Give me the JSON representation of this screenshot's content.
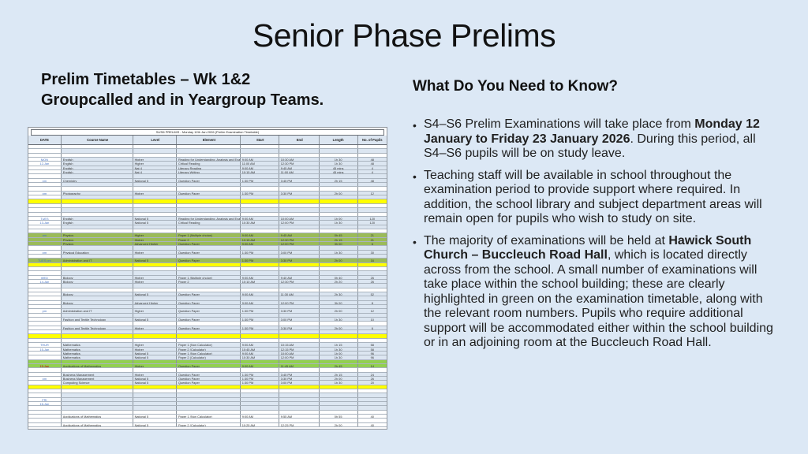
{
  "slide": {
    "title": "Senior Phase Prelims",
    "background_color": "#dce8f5"
  },
  "left": {
    "heading_line1": "Prelim Timetables – Wk 1&2",
    "heading_line2": "Groupcalled and in Yeargroup Teams."
  },
  "right": {
    "heading": "What Do You Need to Know?",
    "bullets": [
      [
        {
          "t": "S4–S6 Prelim Examinations will take place from "
        },
        {
          "t": "Monday 12 January to Friday 23 January 2026",
          "b": true
        },
        {
          "t": ". During this period, all S4–S6 pupils will be on study leave."
        }
      ],
      [
        {
          "t": " Teaching staff will be available in school throughout the examination period to provide support where required. In addition, the school library and subject department areas will remain open for pupils who wish to study on site."
        }
      ],
      [
        {
          "t": "The majority of examinations will be held at "
        },
        {
          "t": "Hawick South Church – Buccleuch Road Hall",
          "b": true
        },
        {
          "t": ", which is located directly across from the school. A small number of examinations will take place within the school building; these are clearly highlighted in green on the examination timetable, along with the relevant room numbers. Pupils who require additional support will be accommodated either within the school building or in an adjoining room at the Buccleuch Road Hall."
        }
      ]
    ]
  },
  "timetable": {
    "title": "S4/S6 PRELIMS - Monday 12th Jan 2026 (Prelim Examination Timetable)",
    "columns": [
      "DATE",
      "Course Name",
      "Level",
      "Element",
      "Start",
      "End",
      "Length",
      "No. of Pupils"
    ],
    "colors": {
      "row_blue": "#dce6f1",
      "highlight_yellow": "#ffff00",
      "highlight_olive": "#9bbb59",
      "highlight_green": "#92d050",
      "date_text_blue": "#4472c4",
      "date_text_red": "#c00000"
    },
    "rows": [
      {
        "f": "w"
      },
      {
        "f": "b"
      },
      {
        "f": "w"
      },
      {
        "f": "b",
        "c": [
          "MON",
          "English",
          "Higher",
          "Reading for Understanding, Analysis and Evaluation",
          "9:00 AM",
          "10:30 AM",
          "1h 30",
          "48"
        ]
      },
      {
        "f": "b",
        "c": [
          "12-Jan",
          "English",
          "Higher",
          "Critical Reading",
          "11:00 AM",
          "12:30 PM",
          "1h 30",
          "48"
        ]
      },
      {
        "f": "b",
        "c": [
          "",
          "English",
          "Nat 4",
          "Literacy Reading",
          "9:00 AM",
          "9:45 AM",
          "45 mins",
          "4"
        ]
      },
      {
        "f": "b",
        "c": [
          "",
          "English",
          "Nat 4",
          "Literacy Writing",
          "10:15 AM",
          "11:00 AM",
          "45 mins",
          "4"
        ]
      },
      {
        "f": "b"
      },
      {
        "f": "b",
        "c": [
          "pm",
          "Chemistry",
          "National 5",
          "Question Paper",
          "1:30 PM",
          "3:45 PM",
          "2h 15",
          "48"
        ]
      },
      {
        "f": "b"
      },
      {
        "f": "w"
      },
      {
        "f": "b",
        "c": [
          "pm",
          "Photography",
          "Higher",
          "Question Paper",
          "1:30 PM",
          "3:30 PM",
          "2h 00",
          "12"
        ]
      },
      {
        "f": "b"
      },
      {
        "f": "y"
      },
      {
        "f": "w"
      },
      {
        "f": "b"
      },
      {
        "f": "w"
      },
      {
        "f": "b",
        "c": [
          "TUES",
          "English",
          "National 5",
          "Reading for Understanding, Analysis and Evaluation",
          "9:00 AM",
          "10:00 AM",
          "1h 00",
          "120"
        ]
      },
      {
        "f": "b",
        "c": [
          "13-Jan",
          "English",
          "National 5",
          "Critical Reading",
          "10:30 AM",
          "12:00 PM",
          "1h 30",
          "120"
        ]
      },
      {
        "f": "b"
      },
      {
        "f": "w"
      },
      {
        "f": "o",
        "c": [
          "am",
          "Physics",
          "Higher",
          "Paper 1 (Multiple choice)",
          "9:00 AM",
          "9:45 AM",
          "0h 45",
          "21"
        ]
      },
      {
        "f": "o",
        "c": [
          "",
          "Physics",
          "Higher",
          "Paper 2",
          "10:15 AM",
          "12:30 PM",
          "2h 15",
          "21"
        ]
      },
      {
        "f": "o",
        "c": [
          "",
          "Physics",
          "Advanced Higher",
          "Question Paper",
          "9:00 AM",
          "12:00 PM",
          "3h 00",
          "6"
        ]
      },
      {
        "f": "b"
      },
      {
        "f": "b",
        "c": [
          "pm",
          "Physical Education",
          "Higher",
          "Question Paper",
          "1:30 PM",
          "3:00 PM",
          "1h 30",
          "30"
        ]
      },
      {
        "f": "b"
      },
      {
        "f": "o",
        "c": [
          "TUES pm",
          "Administration and IT",
          "National 5",
          "Question Paper",
          "1:30 PM",
          "3:30 PM",
          "2h 00",
          "16"
        ]
      },
      {
        "f": "y"
      },
      {
        "f": "w"
      },
      {
        "f": "b"
      },
      {
        "f": "b",
        "c": [
          "WED",
          "Biology",
          "Higher",
          "Paper 1 (Multiple choice)",
          "9:00 AM",
          "9:40 AM",
          "0h 40",
          "26"
        ]
      },
      {
        "f": "b",
        "c": [
          "14-Jan",
          "Biology",
          "Higher",
          "Paper 2",
          "10:10 AM",
          "12:30 PM",
          "2h 20",
          "26"
        ]
      },
      {
        "f": "b"
      },
      {
        "f": "w"
      },
      {
        "f": "b",
        "c": [
          "",
          "Biology",
          "National 5",
          "Question Paper",
          "9:00 AM",
          "11:30 AM",
          "2h 30",
          "52"
        ]
      },
      {
        "f": "b"
      },
      {
        "f": "b",
        "c": [
          "",
          "Biology",
          "Advanced Higher",
          "Question Paper",
          "9:00 AM",
          "12:00 PM",
          "3h 00",
          "8"
        ]
      },
      {
        "f": "b"
      },
      {
        "f": "b",
        "c": [
          "pm",
          "Administration and IT",
          "Higher",
          "Question Paper",
          "1:30 PM",
          "3:30 PM",
          "2h 00",
          "12"
        ]
      },
      {
        "f": "b"
      },
      {
        "f": "b",
        "c": [
          "",
          "Fashion and Textile Technology",
          "National 5",
          "Question Paper",
          "1:30 PM",
          "3:00 PM",
          "1h 30",
          "10"
        ]
      },
      {
        "f": "w"
      },
      {
        "f": "b",
        "c": [
          "",
          "Fashion and Textile Technology",
          "Higher",
          "Question Paper",
          "1:30 PM",
          "3:30 PM",
          "2h 00",
          "6"
        ]
      },
      {
        "f": "b"
      },
      {
        "f": "y"
      },
      {
        "f": "w"
      },
      {
        "f": "b",
        "c": [
          "THUR",
          "Mathematics",
          "Higher",
          "Paper 1 (Non Calculator)",
          "9:00 AM",
          "10:15 AM",
          "1h 15",
          "58"
        ]
      },
      {
        "f": "b",
        "c": [
          "15-Jan",
          "Mathematics",
          "Higher",
          "Paper 2 (Calculator)",
          "10:45 AM",
          "12:15 PM",
          "1h 30",
          "58"
        ]
      },
      {
        "f": "b",
        "c": [
          "",
          "Mathematics",
          "National 5",
          "Paper 1 (Non Calculator)",
          "9:00 AM",
          "10:00 AM",
          "1h 00",
          "96"
        ]
      },
      {
        "f": "b",
        "c": [
          "",
          "Mathematics",
          "National 5",
          "Paper 2 (Calculator)",
          "10:30 AM",
          "12:00 PM",
          "1h 30",
          "96"
        ]
      },
      {
        "f": "g"
      },
      {
        "f": "g",
        "dred": true,
        "c": [
          "15-Jan",
          "Applications of Mathematics",
          "Higher",
          "Question Paper",
          "9:00 AM",
          "11:45 AM",
          "2h 45",
          "14"
        ]
      },
      {
        "f": "w"
      },
      {
        "f": "b",
        "c": [
          "",
          "Business Management",
          "Higher",
          "Question Paper",
          "1:30 PM",
          "3:45 PM",
          "2h 15",
          "24"
        ]
      },
      {
        "f": "b",
        "c": [
          "pm",
          "Business Management",
          "National 5",
          "Question Paper",
          "1:30 PM",
          "3:30 PM",
          "2h 00",
          "26"
        ]
      },
      {
        "f": "b",
        "c": [
          "",
          "Computing Science",
          "National 5",
          "Question Paper",
          "1:30 PM",
          "3:00 PM",
          "1h 30",
          "20"
        ]
      },
      {
        "f": "y"
      },
      {
        "f": "w"
      },
      {
        "f": "b"
      },
      {
        "f": "b",
        "c": [
          "FRI",
          "",
          "",
          "",
          "",
          "",
          "",
          ""
        ]
      },
      {
        "f": "b",
        "c": [
          "16-Jan",
          "",
          "",
          "",
          "",
          "",
          "",
          ""
        ]
      },
      {
        "f": "b"
      },
      {
        "f": "w"
      },
      {
        "f": "w",
        "c": [
          "",
          "Applications of Mathematics",
          "National 5",
          "Paper 1 (Non Calculator)",
          "9:00 AM",
          "9:55 AM",
          "0h 55",
          "40"
        ]
      },
      {
        "f": "w"
      },
      {
        "f": "w",
        "c": [
          "",
          "Applications of Mathematics",
          "National 5",
          "Paper 2 (Calculator)",
          "10:25 AM",
          "12:25 PM",
          "2h 00",
          "40"
        ]
      }
    ]
  }
}
